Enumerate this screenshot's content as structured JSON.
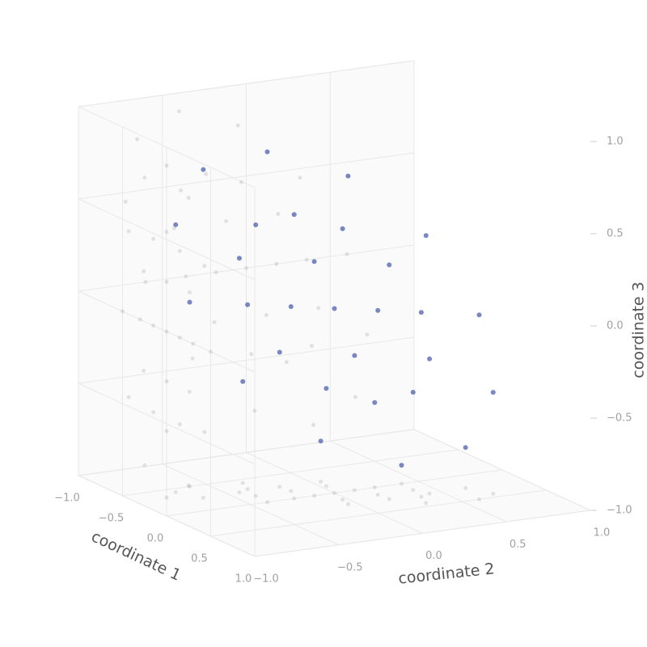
{
  "chart_data": {
    "type": "scatter3d",
    "xlabel": "coordinate 1",
    "ylabel": "coordinate 2",
    "zlabel": "coordinate 3",
    "color": "#4c5fad",
    "xlim": [
      -1,
      1
    ],
    "ylim": [
      -1,
      1
    ],
    "zlim": [
      -1,
      1
    ],
    "xticks": [
      {
        "value": -1,
        "label": "−1.0"
      },
      {
        "value": -0.5,
        "label": "−0.5"
      },
      {
        "value": 0,
        "label": "0.0"
      },
      0.5,
      {
        "value": 1,
        "label": "1.0"
      }
    ],
    "yticks": [
      {
        "value": -1,
        "label": "−1.0"
      },
      {
        "value": -0.5,
        "label": "−0.5"
      },
      {
        "value": 0,
        "label": "0.0"
      },
      0.5,
      {
        "value": 1,
        "label": "1.0"
      }
    ],
    "zticks": [
      {
        "value": -1,
        "label": "−1.0"
      },
      {
        "value": -0.5,
        "label": "−0.5"
      },
      {
        "value": 0,
        "label": "0.0"
      },
      0.5,
      {
        "value": 1,
        "label": "1.0"
      }
    ],
    "grid": true,
    "x": [
      0,
      0.25,
      0.43,
      0.5,
      0.43,
      0.25,
      0,
      -0.25,
      -0.43,
      -0.5,
      -0.43,
      -0.25,
      0,
      0.15,
      0.26,
      0.3,
      0.26,
      0.15,
      0,
      -0.15,
      -0.26,
      -0.3,
      -0.26,
      -0.15,
      0,
      0,
      0.15,
      0,
      -0.15
    ],
    "y": [
      -0.4,
      -0.05,
      0.32,
      0.6,
      0.72,
      0.65,
      0.4,
      0.05,
      -0.32,
      -0.6,
      -0.72,
      -0.65,
      -0.24,
      -0.03,
      0.19,
      0.36,
      0.43,
      0.39,
      0.24,
      0.03,
      -0.19,
      -0.36,
      -0.43,
      -0.39,
      0,
      -0.12,
      0.18,
      0.12,
      -0.18
    ],
    "z": [
      0.9,
      0.78,
      0.45,
      0,
      -0.45,
      -0.78,
      -0.9,
      -0.78,
      -0.45,
      0,
      0.45,
      0.78,
      0.54,
      0.47,
      0.27,
      0,
      -0.27,
      -0.47,
      -0.54,
      -0.47,
      -0.27,
      0,
      0.27,
      0.47,
      0,
      0.27,
      0,
      -0.27,
      0
    ]
  }
}
